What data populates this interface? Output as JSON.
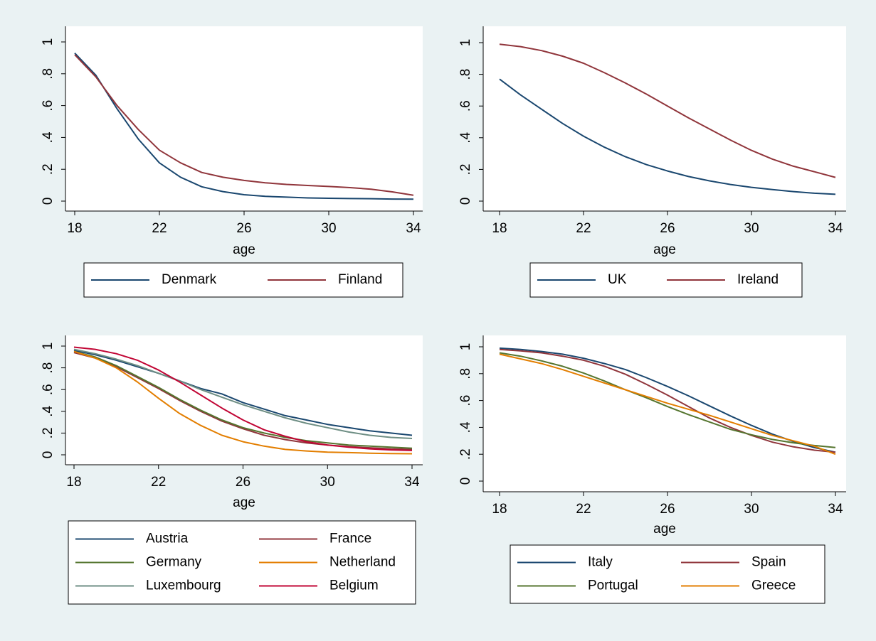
{
  "colors": {
    "background": "#eaf2f3",
    "plot_region": "#ffffff",
    "axis": "#000000"
  },
  "chart_data": [
    {
      "type": "line",
      "xlabel": "age",
      "ylabel": "",
      "xlim": [
        18,
        34
      ],
      "ylim": [
        0,
        1
      ],
      "x_ticks": [
        18,
        22,
        26,
        30,
        34
      ],
      "x_tick_labels": [
        "18",
        "22",
        "26",
        "30",
        "34"
      ],
      "y_ticks": [
        0,
        0.2,
        0.4,
        0.6,
        0.8,
        1
      ],
      "y_tick_labels": [
        "0",
        ".2",
        ".4",
        ".6",
        ".8",
        "1"
      ],
      "x": [
        18,
        19,
        20,
        21,
        22,
        23,
        24,
        25,
        26,
        27,
        28,
        29,
        30,
        31,
        32,
        33,
        34
      ],
      "series": [
        {
          "name": "Denmark",
          "color": "#1a476f",
          "values": [
            0.93,
            0.79,
            0.58,
            0.39,
            0.24,
            0.15,
            0.09,
            0.06,
            0.04,
            0.03,
            0.025,
            0.02,
            0.018,
            0.016,
            0.015,
            0.013,
            0.012
          ]
        },
        {
          "name": "Finland",
          "color": "#90353b",
          "values": [
            0.92,
            0.78,
            0.6,
            0.45,
            0.32,
            0.24,
            0.18,
            0.15,
            0.13,
            0.115,
            0.105,
            0.098,
            0.092,
            0.085,
            0.075,
            0.058,
            0.037
          ]
        }
      ],
      "legend": {
        "position": "bottom",
        "columns": 2
      }
    },
    {
      "type": "line",
      "xlabel": "age",
      "ylabel": "",
      "xlim": [
        18,
        34
      ],
      "ylim": [
        0,
        1
      ],
      "x_ticks": [
        18,
        22,
        26,
        30,
        34
      ],
      "x_tick_labels": [
        "18",
        "22",
        "26",
        "30",
        "34"
      ],
      "y_ticks": [
        0,
        0.2,
        0.4,
        0.6,
        0.8,
        1
      ],
      "y_tick_labels": [
        "0",
        ".2",
        ".4",
        ".6",
        ".8",
        "1"
      ],
      "x": [
        18,
        19,
        20,
        21,
        22,
        23,
        24,
        25,
        26,
        27,
        28,
        29,
        30,
        31,
        32,
        33,
        34
      ],
      "series": [
        {
          "name": "UK",
          "color": "#1a476f",
          "values": [
            0.77,
            0.67,
            0.58,
            0.49,
            0.41,
            0.34,
            0.28,
            0.23,
            0.19,
            0.155,
            0.128,
            0.105,
            0.087,
            0.073,
            0.06,
            0.05,
            0.043
          ]
        },
        {
          "name": "Ireland",
          "color": "#90353b",
          "values": [
            0.99,
            0.975,
            0.95,
            0.915,
            0.87,
            0.81,
            0.745,
            0.675,
            0.6,
            0.525,
            0.455,
            0.385,
            0.32,
            0.265,
            0.22,
            0.185,
            0.15
          ]
        }
      ],
      "legend": {
        "position": "bottom",
        "columns": 2
      }
    },
    {
      "type": "line",
      "xlabel": "age",
      "ylabel": "",
      "xlim": [
        18,
        34
      ],
      "ylim": [
        0,
        1
      ],
      "x_ticks": [
        18,
        22,
        26,
        30,
        34
      ],
      "x_tick_labels": [
        "18",
        "22",
        "26",
        "30",
        "34"
      ],
      "y_ticks": [
        0,
        0.2,
        0.4,
        0.6,
        0.8,
        1
      ],
      "y_tick_labels": [
        "0",
        ".2",
        ".4",
        ".6",
        ".8",
        "1"
      ],
      "x": [
        18,
        19,
        20,
        21,
        22,
        23,
        24,
        25,
        26,
        27,
        28,
        29,
        30,
        31,
        32,
        33,
        34
      ],
      "series": [
        {
          "name": "Austria",
          "color": "#1a476f",
          "values": [
            0.96,
            0.92,
            0.87,
            0.81,
            0.75,
            0.68,
            0.61,
            0.56,
            0.48,
            0.42,
            0.36,
            0.32,
            0.28,
            0.25,
            0.22,
            0.2,
            0.18
          ]
        },
        {
          "name": "France",
          "color": "#90353b",
          "values": [
            0.94,
            0.89,
            0.81,
            0.71,
            0.61,
            0.5,
            0.4,
            0.31,
            0.24,
            0.18,
            0.14,
            0.11,
            0.09,
            0.075,
            0.065,
            0.055,
            0.05
          ]
        },
        {
          "name": "Germany",
          "color": "#55752f",
          "values": [
            0.95,
            0.9,
            0.82,
            0.72,
            0.62,
            0.51,
            0.41,
            0.32,
            0.25,
            0.2,
            0.16,
            0.13,
            0.11,
            0.09,
            0.08,
            0.07,
            0.06
          ]
        },
        {
          "name": "Netherland",
          "color": "#e37e00",
          "values": [
            0.95,
            0.89,
            0.8,
            0.67,
            0.52,
            0.38,
            0.27,
            0.18,
            0.12,
            0.08,
            0.05,
            0.035,
            0.025,
            0.02,
            0.015,
            0.012,
            0.01
          ]
        },
        {
          "name": "Luxembourg",
          "color": "#6e8e84",
          "values": [
            0.97,
            0.93,
            0.88,
            0.82,
            0.75,
            0.68,
            0.6,
            0.53,
            0.46,
            0.4,
            0.34,
            0.29,
            0.25,
            0.21,
            0.18,
            0.16,
            0.15
          ]
        },
        {
          "name": "Belgium",
          "color": "#c10534",
          "values": [
            0.99,
            0.97,
            0.93,
            0.87,
            0.78,
            0.67,
            0.55,
            0.43,
            0.32,
            0.23,
            0.17,
            0.12,
            0.09,
            0.07,
            0.055,
            0.045,
            0.04
          ]
        }
      ],
      "legend": {
        "position": "bottom",
        "columns": 2
      }
    },
    {
      "type": "line",
      "xlabel": "age",
      "ylabel": "",
      "xlim": [
        18,
        34
      ],
      "ylim": [
        0,
        1
      ],
      "x_ticks": [
        18,
        22,
        26,
        30,
        34
      ],
      "x_tick_labels": [
        "18",
        "22",
        "26",
        "30",
        "34"
      ],
      "y_ticks": [
        0,
        0.2,
        0.4,
        0.6,
        0.8,
        1
      ],
      "y_tick_labels": [
        "0",
        ".2",
        ".4",
        ".6",
        ".8",
        "1"
      ],
      "x": [
        18,
        19,
        20,
        21,
        22,
        23,
        24,
        25,
        26,
        27,
        28,
        29,
        30,
        31,
        32,
        33,
        34
      ],
      "series": [
        {
          "name": "Italy",
          "color": "#1a476f",
          "values": [
            0.99,
            0.98,
            0.965,
            0.945,
            0.915,
            0.875,
            0.83,
            0.77,
            0.705,
            0.635,
            0.56,
            0.485,
            0.415,
            0.35,
            0.295,
            0.25,
            0.215
          ]
        },
        {
          "name": "Spain",
          "color": "#90353b",
          "values": [
            0.98,
            0.97,
            0.955,
            0.93,
            0.9,
            0.855,
            0.795,
            0.72,
            0.64,
            0.555,
            0.47,
            0.4,
            0.34,
            0.29,
            0.255,
            0.23,
            0.215
          ]
        },
        {
          "name": "Portugal",
          "color": "#55752f",
          "values": [
            0.955,
            0.93,
            0.895,
            0.855,
            0.805,
            0.745,
            0.68,
            0.62,
            0.555,
            0.495,
            0.44,
            0.385,
            0.345,
            0.31,
            0.285,
            0.265,
            0.25
          ]
        },
        {
          "name": "Greece",
          "color": "#e37e00",
          "values": [
            0.945,
            0.91,
            0.875,
            0.83,
            0.78,
            0.73,
            0.68,
            0.63,
            0.58,
            0.535,
            0.49,
            0.44,
            0.39,
            0.34,
            0.3,
            0.26,
            0.2
          ]
        }
      ],
      "legend": {
        "position": "bottom",
        "columns": 2
      }
    }
  ]
}
